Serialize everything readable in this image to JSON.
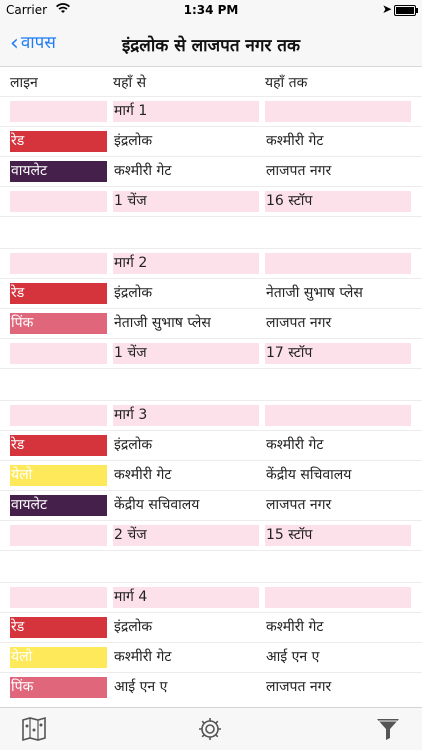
{
  "status": {
    "carrier": "Carrier",
    "time": "1:34 PM"
  },
  "nav": {
    "back_label": "वापस",
    "title": "इंद्रलोक से लाजपत नगर तक"
  },
  "headers": {
    "line": "लाइन",
    "from": "यहाँ से",
    "to": "यहाँ तक"
  },
  "colors": {
    "red": "#d6343d",
    "violet": "#45204a",
    "pink": "#e0667c",
    "yellow": "#fde95a",
    "row_pink": "#fde1ea",
    "accent": "#1e7cf7"
  },
  "routes": [
    {
      "title": "मार्ग 1",
      "legs": [
        {
          "line": "रेड",
          "color": "red",
          "from": "इंद्रलोक",
          "to": "कश्मीरी गेट"
        },
        {
          "line": "वायलेट",
          "color": "violet",
          "from": "कश्मीरी गेट",
          "to": "लाजपत नगर"
        }
      ],
      "summary": {
        "changes": "1 चेंज",
        "stops": "16 स्टॉप"
      }
    },
    {
      "title": "मार्ग 2",
      "legs": [
        {
          "line": "रेड",
          "color": "red",
          "from": "इंद्रलोक",
          "to": "नेताजी सुभाष प्लेस"
        },
        {
          "line": "पिंक",
          "color": "pink",
          "from": "नेताजी सुभाष प्लेस",
          "to": "लाजपत नगर"
        }
      ],
      "summary": {
        "changes": "1 चेंज",
        "stops": "17 स्टॉप"
      }
    },
    {
      "title": "मार्ग 3",
      "legs": [
        {
          "line": "रेड",
          "color": "red",
          "from": "इंद्रलोक",
          "to": "कश्मीरी गेट"
        },
        {
          "line": "येलो",
          "color": "yellow",
          "from": "कश्मीरी गेट",
          "to": "केंद्रीय सचिवालय"
        },
        {
          "line": "वायलेट",
          "color": "violet",
          "from": "केंद्रीय सचिवालय",
          "to": "लाजपत नगर"
        }
      ],
      "summary": {
        "changes": "2 चेंज",
        "stops": "15 स्टॉप"
      }
    },
    {
      "title": "मार्ग 4",
      "legs": [
        {
          "line": "रेड",
          "color": "red",
          "from": "इंद्रलोक",
          "to": "कश्मीरी गेट"
        },
        {
          "line": "येलो",
          "color": "yellow",
          "from": "कश्मीरी गेट",
          "to": "आई एन ए"
        },
        {
          "line": "पिंक",
          "color": "pink",
          "from": "आई एन ए",
          "to": "लाजपत नगर"
        }
      ],
      "summary": null
    }
  ],
  "tabs": [
    {
      "name": "map-icon"
    },
    {
      "name": "gear-icon"
    },
    {
      "name": "filter-icon"
    }
  ]
}
